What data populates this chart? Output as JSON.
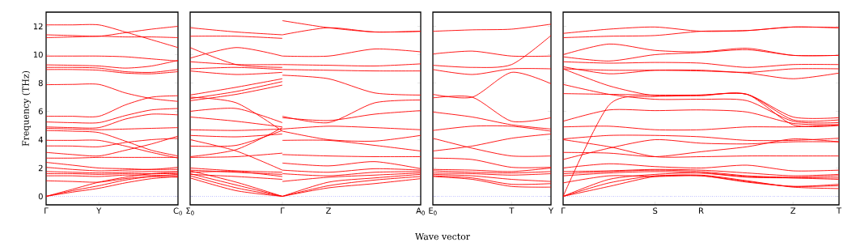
{
  "chart_data": [
    {
      "type": "line",
      "ylabel": "Frequency (THz)",
      "ylim": [
        -0.6,
        13
      ],
      "yticks": [
        0,
        2,
        4,
        6,
        8,
        10,
        12
      ],
      "categories": [
        "Γ",
        null,
        "Y",
        null,
        null,
        "C$_{0}$"
      ],
      "ref_lines": [
        {
          "axis": "y",
          "value": 0,
          "color": "#0000ff",
          "line_style": "dotted"
        }
      ],
      "series": [
        {
          "color": "#ff0000",
          "values": [
            12.1,
            12.1,
            12.1,
            11.6,
            11.05,
            10.5
          ]
        },
        {
          "color": "#ff0000",
          "values": [
            11.4,
            11.35,
            11.3,
            11.55,
            11.8,
            12.0
          ]
        },
        {
          "color": "#ff0000",
          "values": [
            11.2,
            11.25,
            11.3,
            11.25,
            11.25,
            11.2
          ]
        },
        {
          "color": "#ff0000",
          "values": [
            9.9,
            9.9,
            9.9,
            9.85,
            9.7,
            9.55
          ]
        },
        {
          "color": "#ff0000",
          "values": [
            9.28,
            9.25,
            9.2,
            9.05,
            9.2,
            9.6
          ]
        },
        {
          "color": "#ff0000",
          "values": [
            9.1,
            9.1,
            9.05,
            8.8,
            8.75,
            8.95
          ]
        },
        {
          "color": "#ff0000",
          "values": [
            8.95,
            8.95,
            8.9,
            8.7,
            8.65,
            8.8
          ]
        },
        {
          "color": "#ff0000",
          "values": [
            7.88,
            7.9,
            7.9,
            7.3,
            6.9,
            6.7
          ]
        },
        {
          "color": "#ff0000",
          "values": [
            5.65,
            5.65,
            5.65,
            6.45,
            7.0,
            7.1
          ]
        },
        {
          "color": "#ff0000",
          "values": [
            5.25,
            5.2,
            5.2,
            5.7,
            6.1,
            6.2
          ]
        },
        {
          "color": "#ff0000",
          "values": [
            4.9,
            4.85,
            4.85,
            5.45,
            5.8,
            5.75
          ]
        },
        {
          "color": "#ff0000",
          "values": [
            4.8,
            4.75,
            4.7,
            4.75,
            4.8,
            4.85
          ]
        },
        {
          "color": "#ff0000",
          "values": [
            4.65,
            4.6,
            4.5,
            3.9,
            3.25,
            2.85
          ]
        },
        {
          "color": "#ff0000",
          "values": [
            3.95,
            3.95,
            3.95,
            3.55,
            3.1,
            2.7
          ]
        },
        {
          "color": "#ff0000",
          "values": [
            3.56,
            3.55,
            3.5,
            3.8,
            4.0,
            4.1
          ]
        },
        {
          "color": "#ff0000",
          "values": [
            3.1,
            2.95,
            2.85,
            3.25,
            3.7,
            4.25
          ]
        },
        {
          "color": "#ff0000",
          "values": [
            2.7,
            2.7,
            2.75,
            2.75,
            2.75,
            2.75
          ]
        },
        {
          "color": "#ff0000",
          "values": [
            2.4,
            2.2,
            2.0,
            1.95,
            1.9,
            2.05
          ]
        },
        {
          "color": "#ff0000",
          "values": [
            2.05,
            1.9,
            1.8,
            1.85,
            1.9,
            1.9
          ]
        },
        {
          "color": "#ff0000",
          "values": [
            1.75,
            1.7,
            1.65,
            1.7,
            1.75,
            1.75
          ]
        },
        {
          "color": "#ff0000",
          "values": [
            1.6,
            1.6,
            1.55,
            1.6,
            1.6,
            1.6
          ]
        },
        {
          "color": "#ff0000",
          "values": [
            1.45,
            1.45,
            1.4,
            1.5,
            1.5,
            1.45
          ]
        },
        {
          "color": "#ff0000",
          "values": [
            1.1,
            1.05,
            1.0,
            1.25,
            1.4,
            1.35
          ]
        },
        {
          "color": "#ff0000",
          "values": [
            0,
            0.5,
            1.0,
            1.35,
            1.6,
            1.7
          ]
        },
        {
          "color": "#ff0000",
          "values": [
            0,
            0.4,
            0.75,
            1.15,
            1.4,
            1.55
          ]
        },
        {
          "color": "#ff0000",
          "values": [
            0,
            0.3,
            0.57,
            0.95,
            1.25,
            1.4
          ]
        }
      ]
    },
    {
      "type": "line",
      "ylim": [
        -0.6,
        13
      ],
      "yticks": [
        0,
        2,
        4,
        6,
        8,
        10,
        12
      ],
      "tick_labels": "x",
      "categories": [
        "Σ$_{0}$",
        null,
        "Γ",
        "Z",
        null,
        "A$_{0}$"
      ],
      "ref_lines": [
        {
          "axis": "y",
          "value": 0,
          "color": "#0000ff",
          "line_style": "dotted"
        }
      ],
      "series": [
        {
          "color": "#ff0000",
          "values": [
            11.9,
            11.6,
            11.4,
            null,
            null,
            null
          ]
        },
        {
          "color": "#ff0000",
          "values": [
            11.3,
            11.3,
            11.15,
            null,
            null,
            null
          ]
        },
        {
          "color": "#ff0000",
          "values": [
            10.5,
            9.3,
            9.1,
            null,
            null,
            null
          ]
        },
        {
          "color": "#ff0000",
          "values": [
            9.75,
            10.5,
            9.9,
            null,
            null,
            null
          ]
        },
        {
          "color": "#ff0000",
          "values": [
            9.5,
            9.3,
            9.3,
            null,
            null,
            null
          ]
        },
        {
          "color": "#ff0000",
          "values": [
            9.0,
            9.1,
            8.95,
            null,
            null,
            null
          ]
        },
        {
          "color": "#ff0000",
          "values": [
            8.85,
            8.6,
            8.75,
            null,
            null,
            null
          ]
        },
        {
          "color": "#ff0000",
          "values": [
            7.15,
            7.7,
            8.3,
            null,
            null,
            null
          ]
        },
        {
          "color": "#ff0000",
          "values": [
            6.9,
            7.4,
            8.1,
            null,
            null,
            null
          ]
        },
        {
          "color": "#ff0000",
          "values": [
            6.75,
            7.2,
            7.85,
            null,
            null,
            null
          ]
        },
        {
          "color": "#ff0000",
          "values": [
            7.0,
            6.6,
            4.6,
            null,
            null,
            null
          ]
        },
        {
          "color": "#ff0000",
          "values": [
            6.0,
            6.2,
            5.2,
            null,
            null,
            null
          ]
        },
        {
          "color": "#ff0000",
          "values": [
            5.6,
            5.3,
            4.9,
            null,
            null,
            null
          ]
        },
        {
          "color": "#ff0000",
          "values": [
            4.7,
            4.65,
            4.75,
            null,
            null,
            null
          ]
        },
        {
          "color": "#ff0000",
          "values": [
            4.3,
            4.2,
            4.4,
            null,
            null,
            null
          ]
        },
        {
          "color": "#ff0000",
          "values": [
            4.0,
            3.2,
            1.85,
            null,
            null,
            null
          ]
        },
        {
          "color": "#ff0000",
          "values": [
            3.55,
            3.6,
            4.65,
            null,
            null,
            null
          ]
        },
        {
          "color": "#ff0000",
          "values": [
            2.8,
            3.3,
            4.85,
            null,
            null,
            null
          ]
        },
        {
          "color": "#ff0000",
          "values": [
            2.75,
            2.8,
            3.05,
            null,
            null,
            null
          ]
        },
        {
          "color": "#ff0000",
          "values": [
            2.0,
            1.8,
            1.7,
            null,
            null,
            null
          ]
        },
        {
          "color": "#ff0000",
          "values": [
            1.85,
            1.7,
            1.55,
            null,
            null,
            null
          ]
        },
        {
          "color": "#ff0000",
          "values": [
            1.7,
            1.75,
            1.4,
            null,
            null,
            null
          ]
        },
        {
          "color": "#ff0000",
          "values": [
            1.55,
            1.4,
            1.2,
            null,
            null,
            null
          ]
        },
        {
          "color": "#ff0000",
          "values": [
            1.8,
            1.0,
            0,
            null,
            null,
            null
          ]
        },
        {
          "color": "#ff0000",
          "values": [
            1.6,
            0.8,
            0,
            null,
            null,
            null
          ]
        },
        {
          "color": "#ff0000",
          "values": [
            1.45,
            0.6,
            0,
            null,
            null,
            null
          ]
        },
        {
          "color": "#ff0000",
          "values": [
            1.3,
            0.4,
            0,
            null,
            null,
            null
          ]
        },
        {
          "color": "#ff0000",
          "values": [
            null,
            null,
            12.4,
            11.9,
            11.6,
            11.65
          ]
        },
        {
          "color": "#ff0000",
          "values": [
            null,
            null,
            11.4,
            11.9,
            11.6,
            11.65
          ]
        },
        {
          "color": "#ff0000",
          "values": [
            null,
            null,
            9.9,
            9.9,
            10.4,
            10.2
          ]
        },
        {
          "color": "#ff0000",
          "values": [
            null,
            null,
            9.3,
            9.25,
            9.2,
            9.35
          ]
        },
        {
          "color": "#ff0000",
          "values": [
            null,
            null,
            8.95,
            8.9,
            8.85,
            8.85
          ]
        },
        {
          "color": "#ff0000",
          "values": [
            null,
            null,
            8.55,
            8.3,
            7.3,
            7.15
          ]
        },
        {
          "color": "#ff0000",
          "values": [
            null,
            null,
            5.65,
            5.2,
            6.6,
            6.8
          ]
        },
        {
          "color": "#ff0000",
          "values": [
            null,
            null,
            5.55,
            5.35,
            5.8,
            6.05
          ]
        },
        {
          "color": "#ff0000",
          "values": [
            null,
            null,
            4.75,
            4.95,
            4.85,
            4.7
          ]
        },
        {
          "color": "#ff0000",
          "values": [
            null,
            null,
            4.6,
            4.0,
            3.9,
            4.3
          ]
        },
        {
          "color": "#ff0000",
          "values": [
            null,
            null,
            3.95,
            3.95,
            3.6,
            3.2
          ]
        },
        {
          "color": "#ff0000",
          "values": [
            null,
            null,
            2.95,
            2.85,
            2.8,
            2.8
          ]
        },
        {
          "color": "#ff0000",
          "values": [
            null,
            null,
            2.35,
            2.15,
            2.45,
            1.95
          ]
        },
        {
          "color": "#ff0000",
          "values": [
            null,
            null,
            1.85,
            1.7,
            1.95,
            1.85
          ]
        },
        {
          "color": "#ff0000",
          "values": [
            null,
            null,
            1.6,
            1.45,
            1.7,
            1.75
          ]
        },
        {
          "color": "#ff0000",
          "values": [
            null,
            null,
            1.05,
            1.35,
            1.5,
            1.65
          ]
        },
        {
          "color": "#ff0000",
          "values": [
            null,
            null,
            0,
            1.0,
            1.3,
            1.55
          ]
        },
        {
          "color": "#ff0000",
          "values": [
            null,
            null,
            0,
            0.75,
            1.15,
            1.4
          ]
        },
        {
          "color": "#ff0000",
          "values": [
            null,
            null,
            0,
            0.6,
            0.9,
            1.25
          ]
        }
      ]
    },
    {
      "type": "line",
      "ylim": [
        -0.6,
        13
      ],
      "yticks": [
        0,
        2,
        4,
        6,
        8,
        10,
        12
      ],
      "tick_labels": "x",
      "categories": [
        "E$_{0}$",
        null,
        "T",
        "Y"
      ],
      "annotations": [
        "Wave vector"
      ],
      "ref_lines": [
        {
          "axis": "y",
          "value": 0,
          "color": "#0000ff",
          "line_style": "dotted"
        }
      ],
      "series": [
        {
          "color": "#ff0000",
          "values": [
            11.65,
            11.75,
            11.8,
            12.15
          ]
        },
        {
          "color": "#ff0000",
          "values": [
            10.05,
            10.25,
            9.9,
            9.9
          ]
        },
        {
          "color": "#ff0000",
          "values": [
            9.25,
            9.1,
            9.3,
            11.35
          ]
        },
        {
          "color": "#ff0000",
          "values": [
            8.95,
            8.6,
            9.0,
            9.0
          ]
        },
        {
          "color": "#ff0000",
          "values": [
            7.2,
            7.0,
            8.75,
            7.95
          ]
        },
        {
          "color": "#ff0000",
          "values": [
            6.95,
            7.0,
            5.3,
            5.55
          ]
        },
        {
          "color": "#ff0000",
          "values": [
            5.95,
            5.6,
            5.05,
            4.75
          ]
        },
        {
          "color": "#ff0000",
          "values": [
            4.65,
            4.95,
            4.95,
            4.6
          ]
        },
        {
          "color": "#ff0000",
          "values": [
            4.1,
            3.4,
            2.85,
            2.85
          ]
        },
        {
          "color": "#ff0000",
          "values": [
            3.2,
            3.55,
            4.1,
            4.4
          ]
        },
        {
          "color": "#ff0000",
          "values": [
            2.7,
            2.6,
            2.05,
            2.05
          ]
        },
        {
          "color": "#ff0000",
          "values": [
            1.9,
            1.85,
            1.75,
            2.0
          ]
        },
        {
          "color": "#ff0000",
          "values": [
            1.8,
            1.7,
            1.65,
            1.75
          ]
        },
        {
          "color": "#ff0000",
          "values": [
            1.65,
            1.6,
            1.5,
            1.6
          ]
        },
        {
          "color": "#ff0000",
          "values": [
            1.55,
            1.45,
            1.2,
            1.05
          ]
        },
        {
          "color": "#ff0000",
          "values": [
            1.45,
            1.3,
            0.85,
            0.9
          ]
        },
        {
          "color": "#ff0000",
          "values": [
            1.4,
            1.2,
            0.7,
            0.65
          ]
        }
      ]
    },
    {
      "type": "line",
      "ylim": [
        -0.6,
        13
      ],
      "yticks": [
        0,
        2,
        4,
        6,
        8,
        10,
        12
      ],
      "tick_labels": "x",
      "categories": [
        "Γ",
        null,
        "S",
        "R",
        null,
        "Z",
        "T"
      ],
      "ref_lines": [
        {
          "axis": "y",
          "value": 0,
          "color": "#0000ff",
          "line_style": "dotted"
        }
      ],
      "series": [
        {
          "color": "#ff0000",
          "values": [
            11.5,
            11.8,
            11.95,
            11.65,
            11.7,
            11.95,
            11.9
          ]
        },
        {
          "color": "#ff0000",
          "values": [
            11.2,
            11.3,
            11.35,
            11.65,
            11.7,
            11.95,
            11.9
          ]
        },
        {
          "color": "#ff0000",
          "values": [
            10.0,
            10.75,
            10.3,
            10.2,
            10.45,
            9.95,
            9.95
          ]
        },
        {
          "color": "#ff0000",
          "values": [
            9.85,
            9.55,
            10.0,
            10.15,
            10.35,
            9.95,
            9.95
          ]
        },
        {
          "color": "#ff0000",
          "values": [
            9.5,
            9.4,
            9.45,
            9.4,
            9.1,
            9.3,
            9.3
          ]
        },
        {
          "color": "#ff0000",
          "values": [
            9.15,
            8.65,
            8.9,
            8.9,
            8.75,
            9.0,
            9.0
          ]
        },
        {
          "color": "#ff0000",
          "values": [
            9.0,
            8.9,
            8.9,
            8.85,
            8.7,
            8.3,
            8.7
          ]
        },
        {
          "color": "#ff0000",
          "values": [
            9.0,
            7.8,
            7.1,
            7.15,
            7.2,
            5.4,
            5.4
          ]
        },
        {
          "color": "#ff0000",
          "values": [
            7.9,
            7.2,
            6.85,
            6.85,
            6.75,
            5.3,
            5.2
          ]
        },
        {
          "color": "#ff0000",
          "values": [
            7.25,
            7.2,
            7.15,
            7.15,
            7.2,
            5.6,
            5.55
          ]
        },
        {
          "color": "#ff0000",
          "values": [
            0,
            6.45,
            7.05,
            7.1,
            7.2,
            5.05,
            5.0
          ]
        },
        {
          "color": "#ff0000",
          "values": [
            5.3,
            6.1,
            6.05,
            6.1,
            5.95,
            5.15,
            5.05
          ]
        },
        {
          "color": "#ff0000",
          "values": [
            4.9,
            4.95,
            4.7,
            4.7,
            4.9,
            4.9,
            5.05
          ]
        },
        {
          "color": "#ff0000",
          "values": [
            4.05,
            4.3,
            4.3,
            4.2,
            3.95,
            3.95,
            4.1
          ]
        },
        {
          "color": "#ff0000",
          "values": [
            4.0,
            3.5,
            2.8,
            2.8,
            2.85,
            2.85,
            2.85
          ]
        },
        {
          "color": "#ff0000",
          "values": [
            3.1,
            3.05,
            2.8,
            3.15,
            3.5,
            4.05,
            3.85
          ]
        },
        {
          "color": "#ff0000",
          "values": [
            2.6,
            3.4,
            4.0,
            3.75,
            3.7,
            3.85,
            3.85
          ]
        },
        {
          "color": "#ff0000",
          "values": [
            2.0,
            2.3,
            2.1,
            2.0,
            2.2,
            1.8,
            1.85
          ]
        },
        {
          "color": "#ff0000",
          "values": [
            1.75,
            1.8,
            1.9,
            1.85,
            1.65,
            1.45,
            1.55
          ]
        },
        {
          "color": "#ff0000",
          "values": [
            1.6,
            1.75,
            1.85,
            1.75,
            1.45,
            1.35,
            1.45
          ]
        },
        {
          "color": "#ff0000",
          "values": [
            1.45,
            1.65,
            1.75,
            1.65,
            1.35,
            1.3,
            1.3
          ]
        },
        {
          "color": "#ff0000",
          "values": [
            0.95,
            1.45,
            1.4,
            1.45,
            1.05,
            0.7,
            0.85
          ]
        },
        {
          "color": "#ff0000",
          "values": [
            0,
            1.2,
            1.55,
            1.65,
            1.4,
            1.3,
            1.2
          ]
        },
        {
          "color": "#ff0000",
          "values": [
            0,
            0.95,
            1.45,
            1.45,
            1.0,
            0.7,
            0.75
          ]
        },
        {
          "color": "#ff0000",
          "values": [
            0,
            0.7,
            1.4,
            1.5,
            1.1,
            0.65,
            0.55
          ]
        }
      ]
    }
  ]
}
